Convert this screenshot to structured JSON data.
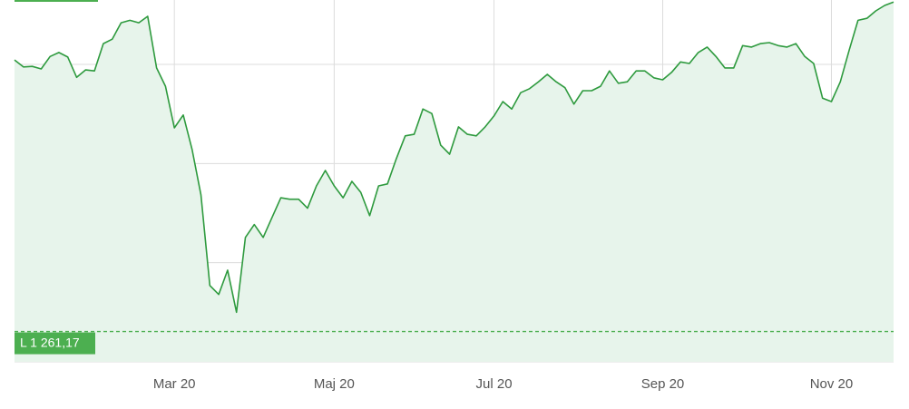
{
  "chart_data": {
    "type": "line",
    "categories": [
      null,
      null,
      null,
      null,
      null,
      null,
      null,
      null,
      null,
      null,
      null,
      null,
      null,
      null,
      null,
      null,
      null,
      null,
      "Mar 20",
      null,
      null,
      null,
      null,
      null,
      null,
      null,
      null,
      null,
      null,
      null,
      null,
      null,
      null,
      null,
      null,
      null,
      "Maj 20",
      null,
      null,
      null,
      null,
      null,
      null,
      null,
      null,
      null,
      null,
      null,
      null,
      null,
      null,
      null,
      null,
      null,
      "Jul 20",
      null,
      null,
      null,
      null,
      null,
      null,
      null,
      null,
      null,
      null,
      null,
      null,
      null,
      null,
      null,
      null,
      null,
      null,
      "Sep 20",
      null,
      null,
      null,
      null,
      null,
      null,
      null,
      null,
      null,
      null,
      null,
      null,
      null,
      null,
      null,
      null,
      null,
      null,
      "Nov 20",
      null,
      null,
      null,
      null,
      null,
      null,
      null
    ],
    "values": [
      1809,
      1795,
      1796,
      1791,
      1816,
      1824,
      1815,
      1774,
      1789,
      1787,
      1842,
      1851,
      1884,
      1889,
      1884,
      1897,
      1793,
      1756,
      1672,
      1698,
      1628,
      1537,
      1354,
      1336,
      1385,
      1300,
      1451,
      1477,
      1451,
      1491,
      1531,
      1528,
      1528,
      1510,
      1555,
      1586,
      1555,
      1531,
      1564,
      1542,
      1495,
      1555,
      1559,
      1610,
      1656,
      1659,
      1710,
      1701,
      1637,
      1619,
      1674,
      1659,
      1656,
      1674,
      1696,
      1725,
      1710,
      1743,
      1751,
      1765,
      1780,
      1765,
      1753,
      1720,
      1747,
      1747,
      1756,
      1787,
      1762,
      1765,
      1787,
      1787,
      1773,
      1769,
      1784,
      1805,
      1802,
      1824,
      1835,
      1816,
      1793,
      1793,
      1838,
      1835,
      1842,
      1844,
      1838,
      1835,
      1842,
      1816,
      1802,
      1732,
      1725,
      1765,
      1829,
      1889,
      1893,
      1908,
      1919,
      1926
    ],
    "color": "#2e9a3e",
    "fill_color": "#e7f4eb",
    "ylim": [
      1200,
      1930
    ],
    "yticks": [
      1200,
      1400,
      1600,
      1800
    ],
    "grid": true,
    "low": {
      "value": 1261.17,
      "label": "L 1 261,17"
    }
  }
}
